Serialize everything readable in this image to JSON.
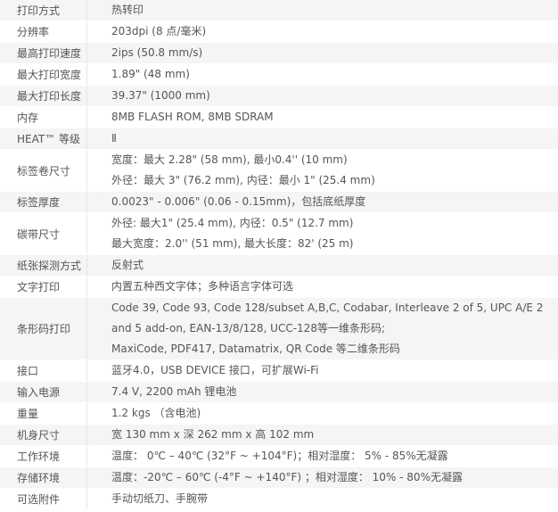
{
  "specs": [
    {
      "label": "打印方式",
      "lines": [
        "热转印"
      ]
    },
    {
      "label": "分辨率",
      "lines": [
        "203dpi (8 点/毫米)"
      ]
    },
    {
      "label": "最高打印速度",
      "lines": [
        "2ips (50.8 mm/s)"
      ]
    },
    {
      "label": "最大打印宽度",
      "lines": [
        "1.89\" (48 mm)"
      ]
    },
    {
      "label": "最大打印长度",
      "lines": [
        "39.37\" (1000 mm)"
      ]
    },
    {
      "label": "内存",
      "lines": [
        "8MB FLASH ROM, 8MB SDRAM"
      ]
    },
    {
      "label": "HEAT™ 等级",
      "lines": [
        "Ⅱ"
      ]
    },
    {
      "label": "标签卷尺寸",
      "lines": [
        "宽度：最大 2.28\" (58 mm), 最小0.4'' (10 mm)",
        "外径：最大 3\" (76.2 mm), 内径：最小 1\" (25.4 mm)"
      ]
    },
    {
      "label": "标签厚度",
      "lines": [
        "0.0023\" - 0.006\" (0.06 - 0.15mm)，包括底纸厚度"
      ]
    },
    {
      "label": "碳带尺寸",
      "lines": [
        "外径: 最大1\" (25.4 mm), 内径：0.5\" (12.7 mm)",
        "最大宽度：2.0'' (51 mm), 最大长度：82' (25 m)"
      ]
    },
    {
      "label": "纸张探测方式",
      "lines": [
        "反射式"
      ]
    },
    {
      "label": "文字打印",
      "lines": [
        "内置五种西文字体；多种语言字体可选"
      ]
    },
    {
      "label": "条形码打印",
      "lines": [
        "Code 39, Code 93, Code 128/subset A,B,C, Codabar, Interleave 2 of 5, UPC A/E 2",
        "and 5 add-on, EAN-13/8/128, UCC-128等一维条形码;",
        "MaxiCode, PDF417, Datamatrix, QR Code 等二维条形码"
      ]
    },
    {
      "label": "接口",
      "lines": [
        "蓝牙4.0，USB DEVICE 接口，可扩展Wi-Fi"
      ]
    },
    {
      "label": "输入电源",
      "lines": [
        "7.4 V, 2200 mAh 锂电池"
      ]
    },
    {
      "label": "重量",
      "lines": [
        "1.2 kgs （含电池)"
      ]
    },
    {
      "label": "机身尺寸",
      "lines": [
        "宽 130 mm x 深 262 mm x 高 102 mm"
      ]
    },
    {
      "label": "工作环境",
      "lines": [
        "温度： 0℃ – 40℃ (32°F ~ +104°F)；相对湿度： 5% - 85%无凝露"
      ]
    },
    {
      "label": "存储环境",
      "lines": [
        "温度：-20℃ – 60℃ (-4°F ~ +140°F) ；相对湿度： 10% - 80%无凝露"
      ]
    },
    {
      "label": "可选附件",
      "lines": [
        "手动切纸刀、手腕带"
      ]
    }
  ]
}
